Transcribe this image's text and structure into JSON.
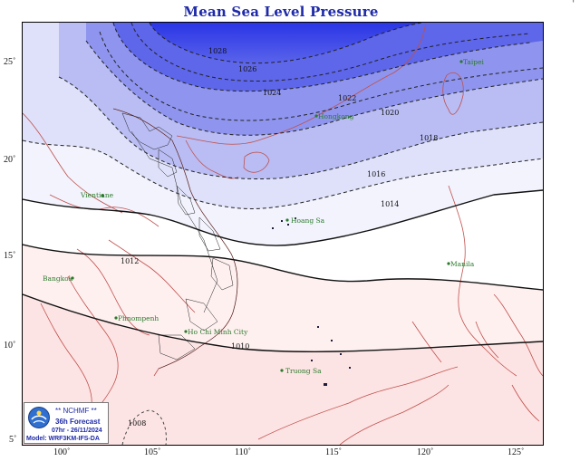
{
  "title": "Mean Sea Level Pressure",
  "corner_mark": "'",
  "axes": {
    "lat_labels": [
      {
        "text": "25˚",
        "lat": 25
      },
      {
        "text": "20˚",
        "lat": 20
      },
      {
        "text": "15˚",
        "lat": 15
      },
      {
        "text": "10˚",
        "lat": 10
      },
      {
        "text": "5˚",
        "lat": 5
      }
    ],
    "lon_labels": [
      {
        "text": "100˚",
        "lon": 100
      },
      {
        "text": "105˚",
        "lon": 105
      },
      {
        "text": "110˚",
        "lon": 110
      },
      {
        "text": "115˚",
        "lon": 115
      },
      {
        "text": "120˚",
        "lon": 120
      },
      {
        "text": "125˚",
        "lon": 125
      }
    ]
  },
  "isobar_labels": [
    "1028",
    "1026",
    "1024",
    "1022",
    "1020",
    "1018",
    "1016",
    "1014",
    "1012",
    "1010",
    "1008"
  ],
  "cities": [
    "Hongkong",
    "Taipei",
    "Vientiane",
    "Hoang Sa",
    "Bangkok",
    "Manila",
    "Phnompenh",
    "Ho Chi Minh City",
    "Truong Sa"
  ],
  "info": {
    "org": "** NCHMF **",
    "forecast": "36h Forecast",
    "datetime": "07hr - 26/11/2024",
    "model": "Model: WRF3KM-IFS-DA",
    "logo_name": "NCHMF"
  },
  "colors": {
    "high_pressure": "#2b36e0",
    "mid_pressure": "#b8bcf3",
    "neutral": "#ffffff",
    "low_pressure": "#fbdcdc",
    "coast": "#c0504d",
    "title": "#1f2aa8",
    "city": "#2a7a2a"
  }
}
